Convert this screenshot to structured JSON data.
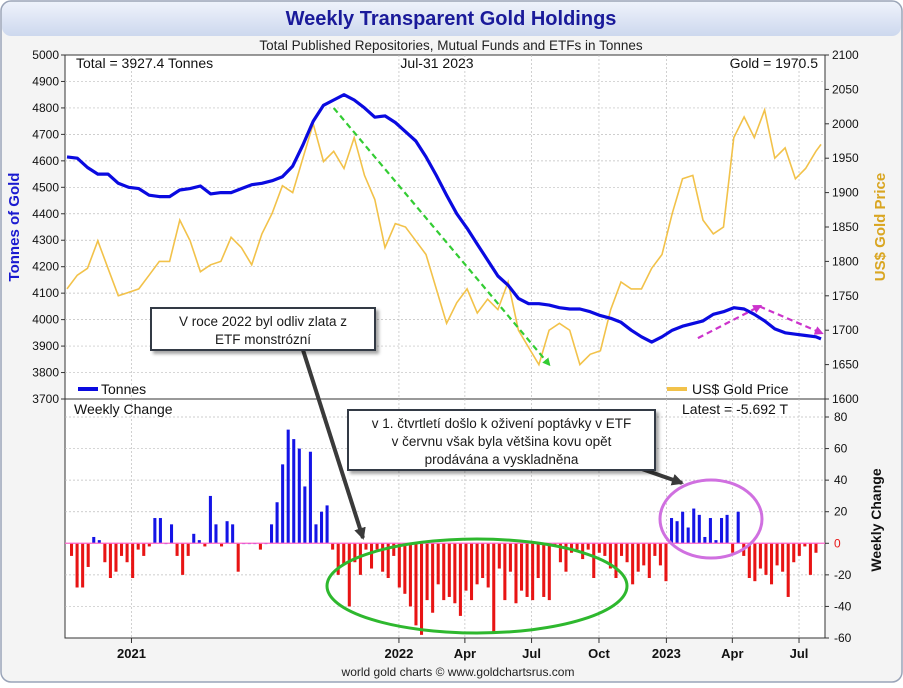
{
  "title": "Weekly Transparent Gold Holdings",
  "subtitle": "Total Published Repositories, Mutual Funds and ETFs in Tonnes",
  "header_left": "Total = 3927.4 Tonnes",
  "header_center": "Jul-31  2023",
  "header_right": "Gold = 1970.5",
  "left_axis_label": "Tonnes of Gold",
  "right_axis_label": "US$ Gold Price",
  "lower_axis_label": "Weekly Change",
  "legend": {
    "tonnes": "Tonnes",
    "gold_price": "US$ Gold Price"
  },
  "lower_panel": {
    "title": "Weekly Change",
    "latest": "Latest = -5.692 T"
  },
  "footer": "world gold charts © www.goldchartsrus.com",
  "callout_1": {
    "line1": "V roce 2022 byl odliv zlata z",
    "line2": "ETF monstrózní"
  },
  "callout_2": {
    "line1": "v 1. čtvrtletí došlo k oživení poptávky v ETF",
    "line2": "v červnu však byla většina kovu opět",
    "line3": "prodávána a vyskladněna"
  },
  "colors": {
    "tonnes": "#0a0ae0",
    "gold_price": "#f2c24a",
    "positive": "#1414e6",
    "negative": "#e81414",
    "title": "#1a1a9a",
    "gold_label": "#d9a520",
    "green_marker": "#33cc33",
    "magenta_marker": "#cc33cc",
    "ellipse_green": "#2eb82e",
    "ellipse_violet": "#d070e0"
  },
  "chart_data": [
    {
      "type": "line",
      "x_ticks": [
        "2021",
        "2022",
        "Apr",
        "Jul",
        "Oct",
        "2023",
        "Apr",
        "Jul"
      ],
      "x_range": [
        "2020-10-05",
        "2023-07-31"
      ],
      "y_left_range": [
        3700,
        5000
      ],
      "y_left_ticks": [
        3700,
        3800,
        3900,
        4000,
        4100,
        4200,
        4300,
        4400,
        4500,
        4600,
        4700,
        4800,
        4900,
        5000
      ],
      "y_right_range": [
        1600,
        2100
      ],
      "y_right_ticks": [
        1600,
        1650,
        1700,
        1750,
        1800,
        1850,
        1900,
        1950,
        2000,
        2050,
        2100
      ],
      "series": [
        {
          "name": "Tonnes",
          "axis": "left",
          "points": [
            [
              "2020-10-05",
              4615
            ],
            [
              "2020-10-19",
              4610
            ],
            [
              "2020-11-02",
              4575
            ],
            [
              "2020-11-16",
              4550
            ],
            [
              "2020-11-30",
              4550
            ],
            [
              "2020-12-14",
              4515
            ],
            [
              "2020-12-28",
              4500
            ],
            [
              "2021-01-11",
              4495
            ],
            [
              "2021-01-25",
              4470
            ],
            [
              "2021-02-08",
              4465
            ],
            [
              "2021-02-22",
              4465
            ],
            [
              "2021-03-08",
              4490
            ],
            [
              "2021-03-22",
              4495
            ],
            [
              "2021-04-05",
              4505
            ],
            [
              "2021-04-19",
              4475
            ],
            [
              "2021-05-03",
              4480
            ],
            [
              "2021-05-17",
              4480
            ],
            [
              "2021-05-31",
              4495
            ],
            [
              "2021-06-14",
              4510
            ],
            [
              "2021-06-28",
              4515
            ],
            [
              "2021-07-12",
              4525
            ],
            [
              "2021-07-26",
              4540
            ],
            [
              "2021-08-09",
              4580
            ],
            [
              "2021-08-23",
              4660
            ],
            [
              "2021-09-06",
              4750
            ],
            [
              "2021-09-20",
              4810
            ],
            [
              "2021-10-04",
              4830
            ],
            [
              "2021-10-18",
              4850
            ],
            [
              "2021-11-01",
              4830
            ],
            [
              "2021-11-15",
              4800
            ],
            [
              "2021-11-29",
              4765
            ],
            [
              "2021-12-13",
              4770
            ],
            [
              "2021-12-27",
              4745
            ],
            [
              "2022-01-10",
              4710
            ],
            [
              "2022-01-24",
              4675
            ],
            [
              "2022-02-07",
              4615
            ],
            [
              "2022-02-21",
              4545
            ],
            [
              "2022-03-07",
              4470
            ],
            [
              "2022-03-21",
              4400
            ],
            [
              "2022-04-04",
              4345
            ],
            [
              "2022-04-18",
              4285
            ],
            [
              "2022-05-02",
              4225
            ],
            [
              "2022-05-16",
              4165
            ],
            [
              "2022-05-30",
              4130
            ],
            [
              "2022-06-13",
              4080
            ],
            [
              "2022-06-27",
              4060
            ],
            [
              "2022-07-11",
              4060
            ],
            [
              "2022-07-25",
              4055
            ],
            [
              "2022-08-08",
              4045
            ],
            [
              "2022-08-22",
              4040
            ],
            [
              "2022-09-05",
              4040
            ],
            [
              "2022-09-19",
              4030
            ],
            [
              "2022-10-03",
              4015
            ],
            [
              "2022-10-17",
              4005
            ],
            [
              "2022-10-31",
              3990
            ],
            [
              "2022-11-14",
              3960
            ],
            [
              "2022-11-28",
              3935
            ],
            [
              "2022-12-12",
              3915
            ],
            [
              "2022-12-26",
              3935
            ],
            [
              "2023-01-09",
              3960
            ],
            [
              "2023-01-23",
              3975
            ],
            [
              "2023-02-06",
              3985
            ],
            [
              "2023-02-20",
              3995
            ],
            [
              "2023-03-06",
              4020
            ],
            [
              "2023-03-20",
              4030
            ],
            [
              "2023-04-03",
              4045
            ],
            [
              "2023-04-17",
              4040
            ],
            [
              "2023-05-01",
              4020
            ],
            [
              "2023-05-15",
              3995
            ],
            [
              "2023-05-29",
              3965
            ],
            [
              "2023-06-12",
              3950
            ],
            [
              "2023-06-26",
              3945
            ],
            [
              "2023-07-10",
              3940
            ],
            [
              "2023-07-24",
              3935
            ],
            [
              "2023-07-31",
              3927
            ]
          ]
        },
        {
          "name": "US$ Gold Price",
          "axis": "right",
          "points": [
            [
              "2020-10-05",
              1760
            ],
            [
              "2020-10-19",
              1780
            ],
            [
              "2020-11-02",
              1790
            ],
            [
              "2020-11-16",
              1830
            ],
            [
              "2020-11-30",
              1790
            ],
            [
              "2020-12-14",
              1750
            ],
            [
              "2020-12-28",
              1755
            ],
            [
              "2021-01-11",
              1760
            ],
            [
              "2021-01-25",
              1780
            ],
            [
              "2021-02-08",
              1800
            ],
            [
              "2021-02-22",
              1800
            ],
            [
              "2021-03-08",
              1860
            ],
            [
              "2021-03-22",
              1830
            ],
            [
              "2021-04-05",
              1785
            ],
            [
              "2021-04-19",
              1795
            ],
            [
              "2021-05-03",
              1800
            ],
            [
              "2021-05-17",
              1835
            ],
            [
              "2021-05-31",
              1820
            ],
            [
              "2021-06-14",
              1795
            ],
            [
              "2021-06-28",
              1840
            ],
            [
              "2021-07-12",
              1870
            ],
            [
              "2021-07-26",
              1910
            ],
            [
              "2021-08-09",
              1900
            ],
            [
              "2021-08-23",
              1950
            ],
            [
              "2021-09-06",
              2000
            ],
            [
              "2021-09-20",
              1945
            ],
            [
              "2021-10-04",
              1960
            ],
            [
              "2021-10-18",
              1935
            ],
            [
              "2021-11-01",
              1980
            ],
            [
              "2021-11-15",
              1925
            ],
            [
              "2021-11-29",
              1890
            ],
            [
              "2021-12-13",
              1820
            ],
            [
              "2021-12-27",
              1855
            ],
            [
              "2022-01-10",
              1850
            ],
            [
              "2022-01-24",
              1830
            ],
            [
              "2022-02-07",
              1810
            ],
            [
              "2022-02-21",
              1760
            ],
            [
              "2022-03-07",
              1710
            ],
            [
              "2022-03-21",
              1740
            ],
            [
              "2022-04-04",
              1760
            ],
            [
              "2022-04-18",
              1725
            ],
            [
              "2022-05-02",
              1745
            ],
            [
              "2022-05-16",
              1730
            ],
            [
              "2022-05-30",
              1770
            ],
            [
              "2022-06-13",
              1700
            ],
            [
              "2022-06-27",
              1675
            ],
            [
              "2022-07-11",
              1650
            ],
            [
              "2022-07-25",
              1700
            ],
            [
              "2022-08-08",
              1710
            ],
            [
              "2022-08-22",
              1700
            ],
            [
              "2022-09-05",
              1650
            ],
            [
              "2022-09-19",
              1665
            ],
            [
              "2022-10-03",
              1670
            ],
            [
              "2022-10-17",
              1730
            ],
            [
              "2022-10-31",
              1770
            ],
            [
              "2022-11-14",
              1760
            ],
            [
              "2022-11-28",
              1760
            ],
            [
              "2022-12-12",
              1790
            ],
            [
              "2022-12-26",
              1810
            ],
            [
              "2023-01-09",
              1870
            ],
            [
              "2023-01-23",
              1920
            ],
            [
              "2023-02-06",
              1925
            ],
            [
              "2023-02-20",
              1860
            ],
            [
              "2023-03-06",
              1840
            ],
            [
              "2023-03-20",
              1850
            ],
            [
              "2023-04-03",
              1980
            ],
            [
              "2023-04-17",
              2010
            ],
            [
              "2023-05-01",
              1980
            ],
            [
              "2023-05-15",
              2020
            ],
            [
              "2023-05-29",
              1950
            ],
            [
              "2023-06-12",
              1965
            ],
            [
              "2023-06-26",
              1920
            ],
            [
              "2023-07-10",
              1935
            ],
            [
              "2023-07-24",
              1960
            ],
            [
              "2023-07-31",
              1970
            ]
          ]
        }
      ]
    },
    {
      "type": "bar",
      "title": "Weekly Change",
      "y_range": [
        -60,
        80
      ],
      "y_ticks": [
        -60,
        -40,
        -20,
        0,
        20,
        40,
        60,
        80
      ],
      "x_range": [
        "2020-10-05",
        "2023-07-31"
      ],
      "weekly_values": [
        -8,
        -28,
        -28,
        -15,
        4,
        2,
        -12,
        -22,
        -18,
        -8,
        -12,
        -22,
        -4,
        -8,
        -2,
        16,
        16,
        0,
        12,
        -8,
        -20,
        -8,
        6,
        2,
        -2,
        30,
        12,
        -2,
        14,
        12,
        -18,
        0,
        0,
        0,
        -4,
        0,
        12,
        26,
        50,
        72,
        66,
        60,
        36,
        58,
        12,
        20,
        24,
        -4,
        -20,
        -14,
        -40,
        -12,
        -20,
        -4,
        -16,
        -4,
        -18,
        -22,
        -8,
        -28,
        -32,
        -40,
        -52,
        -58,
        -36,
        -44,
        -26,
        -36,
        -34,
        -38,
        -46,
        -30,
        -36,
        -26,
        -22,
        -28,
        -56,
        -16,
        -36,
        -18,
        -38,
        -30,
        -34,
        -36,
        -22,
        -34,
        -36,
        -2,
        -12,
        -18,
        -6,
        -4,
        -10,
        -4,
        -22,
        -6,
        -8,
        -16,
        -22,
        -8,
        -12,
        -26,
        -18,
        -14,
        -22,
        -8,
        -14,
        -24,
        16,
        14,
        20,
        10,
        22,
        18,
        4,
        16,
        2,
        16,
        18,
        -6,
        20,
        -8,
        -22,
        -24,
        -16,
        -20,
        -26,
        -14,
        -18,
        -34,
        -12,
        -8,
        -2,
        -20,
        -6
      ]
    }
  ],
  "annotations": [
    {
      "type": "arrow",
      "color": "green",
      "from": [
        "2021-10-04",
        4830
      ],
      "to": [
        "2022-07-25",
        3830
      ]
    },
    {
      "type": "arrow",
      "color": "magenta",
      "from": [
        "2023-02-13",
        3930
      ],
      "to": [
        "2023-05-08",
        4050
      ]
    },
    {
      "type": "arrow",
      "color": "magenta",
      "from": [
        "2023-05-08",
        4050
      ],
      "to": [
        "2023-07-31",
        3950
      ]
    }
  ]
}
